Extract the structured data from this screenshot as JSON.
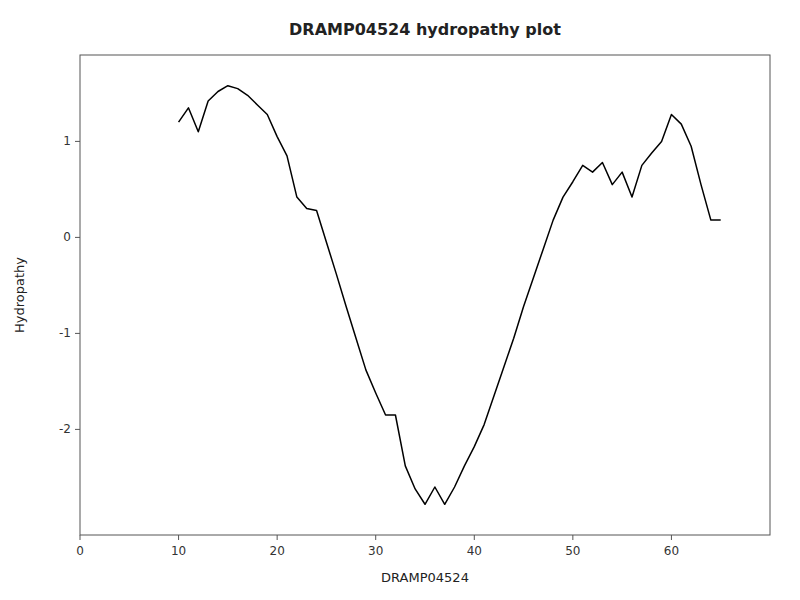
{
  "chart_data": {
    "type": "line",
    "title": "DRAMP04524 hydropathy plot",
    "xlabel": "DRAMP04524",
    "ylabel": "Hydropathy",
    "xlim": [
      0,
      70
    ],
    "ylim": [
      -3.1,
      1.9
    ],
    "xticks": [
      0,
      10,
      20,
      30,
      40,
      50,
      60
    ],
    "yticks": [
      -2,
      -1,
      0,
      1
    ],
    "color": "black",
    "grid": false,
    "x": [
      10,
      11,
      12,
      13,
      14,
      15,
      16,
      17,
      18,
      19,
      20,
      21,
      22,
      23,
      24,
      25,
      26,
      27,
      28,
      29,
      30,
      31,
      32,
      33,
      34,
      35,
      36,
      37,
      38,
      39,
      40,
      41,
      42,
      43,
      44,
      45,
      46,
      47,
      48,
      49,
      50,
      51,
      52,
      53,
      54,
      55,
      56,
      57,
      58,
      59,
      60,
      61,
      62,
      63,
      64,
      65
    ],
    "values": [
      1.2,
      1.35,
      1.1,
      1.42,
      1.52,
      1.58,
      1.55,
      1.48,
      1.38,
      1.28,
      1.05,
      0.85,
      0.42,
      0.3,
      0.28,
      -0.05,
      -0.38,
      -0.72,
      -1.05,
      -1.38,
      -1.62,
      -1.85,
      -1.85,
      -2.38,
      -2.62,
      -2.78,
      -2.6,
      -2.78,
      -2.6,
      -2.38,
      -2.18,
      -1.95,
      -1.65,
      -1.35,
      -1.05,
      -0.72,
      -0.42,
      -0.12,
      0.18,
      0.42,
      0.58,
      0.75,
      0.68,
      0.78,
      0.55,
      0.68,
      0.42,
      0.75,
      0.88,
      1.0,
      1.28,
      1.18,
      0.95,
      0.55,
      0.18,
      0.18
    ]
  }
}
